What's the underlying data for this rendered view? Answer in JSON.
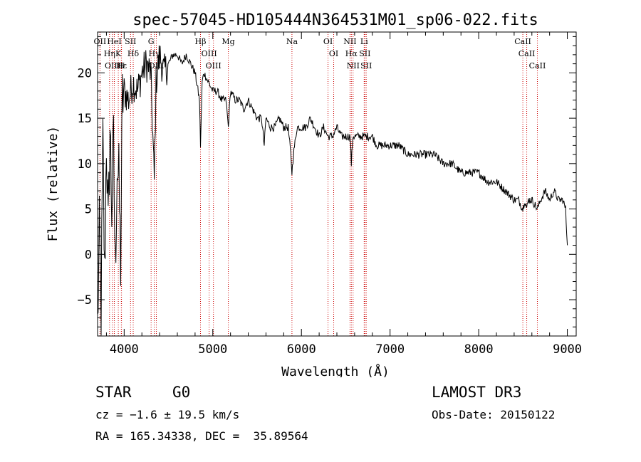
{
  "chart_data": {
    "type": "line",
    "title": "spec-57045-HD105444N364531M01_sp06-022.fits",
    "xlabel": "Wavelength (Å)",
    "ylabel": "Flux (relative)",
    "xlim": [
      3700,
      9100
    ],
    "ylim": [
      -9,
      24.5
    ],
    "x_ticks": [
      4000,
      5000,
      6000,
      7000,
      8000,
      9000
    ],
    "y_ticks": [
      -5,
      0,
      5,
      10,
      15,
      20
    ],
    "x_minor_step": 200,
    "y_minor_step": 1,
    "series": [
      {
        "name": "spectrum",
        "x": [
          3700,
          3720,
          3740,
          3760,
          3780,
          3800,
          3820,
          3840,
          3860,
          3880,
          3900,
          3920,
          3940,
          3960,
          3980,
          4000,
          4050,
          4100,
          4150,
          4200,
          4250,
          4300,
          4340,
          4360,
          4400,
          4450,
          4500,
          4550,
          4600,
          4650,
          4700,
          4750,
          4800,
          4850,
          4861,
          4880,
          4900,
          4950,
          5000,
          5050,
          5100,
          5150,
          5175,
          5200,
          5250,
          5300,
          5350,
          5400,
          5450,
          5500,
          5550,
          5580,
          5600,
          5650,
          5700,
          5750,
          5800,
          5850,
          5880,
          5893,
          5910,
          5950,
          6000,
          6050,
          6100,
          6150,
          6200,
          6250,
          6300,
          6350,
          6400,
          6450,
          6500,
          6550,
          6563,
          6580,
          6600,
          6650,
          6700,
          6750,
          6800,
          6850,
          6900,
          6950,
          7000,
          7100,
          7200,
          7300,
          7400,
          7500,
          7600,
          7700,
          7800,
          7900,
          8000,
          8100,
          8200,
          8300,
          8400,
          8450,
          8498,
          8520,
          8542,
          8560,
          8600,
          8662,
          8700,
          8750,
          8800,
          8850,
          8900,
          8950,
          8980,
          9000
        ],
        "y": [
          -8,
          2,
          -6,
          12,
          -3,
          13,
          2,
          14,
          5,
          12,
          -2,
          10,
          8,
          -1,
          17,
          18,
          17,
          19,
          18,
          20,
          21,
          20,
          8,
          19,
          22,
          20,
          21,
          22,
          22,
          21,
          22,
          21,
          20,
          17,
          12,
          19,
          20,
          19,
          18,
          18,
          17,
          17,
          14,
          18,
          17,
          17,
          16,
          17,
          16,
          15,
          15,
          12,
          15,
          14,
          14,
          15,
          14,
          14,
          11,
          9,
          11,
          14,
          14,
          14,
          15,
          14,
          13,
          14,
          13,
          13,
          14,
          13,
          13,
          13,
          10,
          13,
          13,
          13,
          13,
          13,
          13,
          12,
          12,
          12,
          12,
          12,
          11,
          11,
          11,
          11,
          10,
          10,
          9,
          9,
          9,
          8,
          8,
          7,
          6,
          6,
          5,
          6,
          5,
          6,
          6,
          5,
          6,
          7,
          6,
          7,
          6,
          6,
          5,
          1
        ]
      }
    ],
    "lines": [
      {
        "label": "Hε",
        "wave": 3970
      },
      {
        "label": "OII",
        "wave": 3727
      },
      {
        "label": "OIII",
        "wave": 3869
      },
      {
        "label": "K",
        "wave": 3934
      },
      {
        "label": "HeI",
        "wave": 3889
      },
      {
        "label": "Hη",
        "wave": 3835
      },
      {
        "label": "H",
        "wave": 3968
      },
      {
        "label": "Hδ",
        "wave": 4102
      },
      {
        "label": "SII",
        "wave": 4072
      },
      {
        "label": "OIII",
        "wave": 4363
      },
      {
        "label": "Hγ",
        "wave": 4340
      },
      {
        "label": "G",
        "wave": 4304
      },
      {
        "label": "OIII",
        "wave": 5007
      },
      {
        "label": "OIII",
        "wave": 4959
      },
      {
        "label": "Hβ",
        "wave": 4861
      },
      {
        "label": "Mg",
        "wave": 5175
      },
      {
        "label": "Na",
        "wave": 5893
      },
      {
        "label": "OI",
        "wave": 6300
      },
      {
        "label": "OI",
        "wave": 6364
      },
      {
        "label": "Hα",
        "wave": 6563
      },
      {
        "label": "NII",
        "wave": 6548
      },
      {
        "label": "NII",
        "wave": 6583
      },
      {
        "label": "SII",
        "wave": 6716
      },
      {
        "label": "Li",
        "wave": 6708
      },
      {
        "label": "SII",
        "wave": 6731
      },
      {
        "label": "CaII",
        "wave": 8542
      },
      {
        "label": "CaII",
        "wave": 8498
      },
      {
        "label": "CaII",
        "wave": 8662
      }
    ]
  },
  "info": {
    "object_class": "STAR",
    "subclass": "G0",
    "survey": "LAMOST DR3",
    "cz": "cz = −1.6 ± 19.5 km/s",
    "obs_date": "Obs-Date: 20150122",
    "coords": "RA = 165.34338, DEC =  35.89564"
  },
  "colors": {
    "line_marker": "#cc0000",
    "spectrum": "#000000",
    "axes": "#000000"
  }
}
